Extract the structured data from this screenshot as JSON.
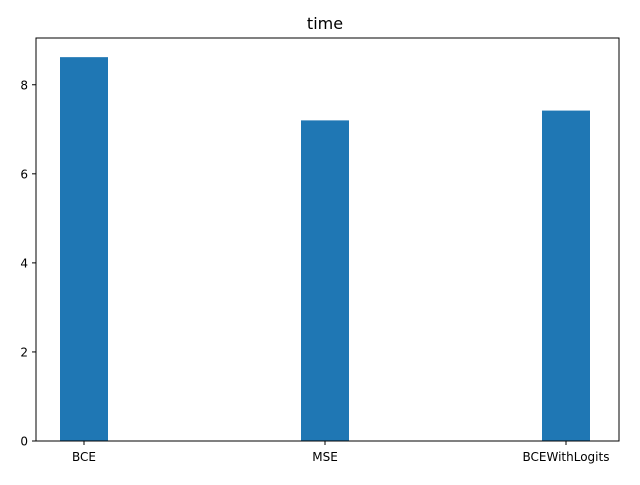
{
  "chart_data": {
    "type": "bar",
    "title": "time",
    "xlabel": "",
    "ylabel": "",
    "categories": [
      "BCE",
      "MSE",
      "BCEWithLogits"
    ],
    "values": [
      8.62,
      7.2,
      7.42
    ],
    "ylim": [
      0,
      9.05
    ],
    "yticks": [
      0,
      2,
      4,
      6,
      8
    ],
    "ytick_labels": [
      "0",
      "2",
      "4",
      "6",
      "8"
    ],
    "grid": false,
    "bar_color": "#1f77b4"
  }
}
